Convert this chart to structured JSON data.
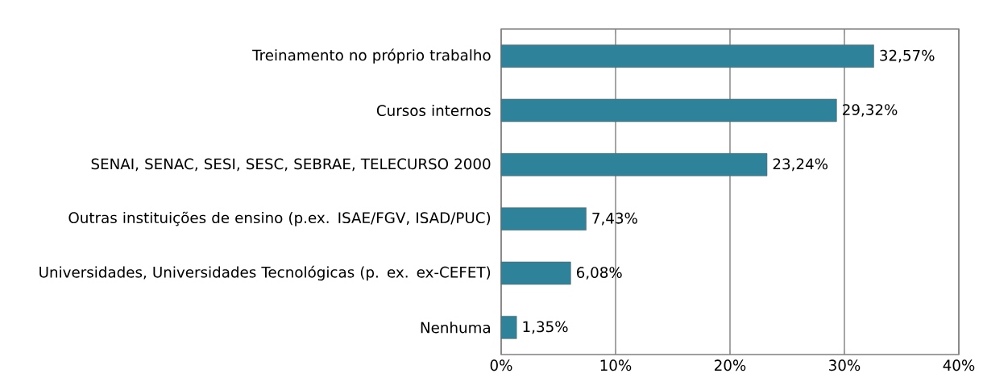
{
  "chart_data": {
    "type": "bar",
    "orientation": "horizontal",
    "categories": [
      "Treinamento no próprio trabalho",
      "Cursos internos",
      "SENAI, SENAC, SESI, SESC, SEBRAE, TELECURSO 2000",
      "Outras instituições de ensino (p.ex. ISAE/FGV, ISAD/PUC)",
      "Universidades, Universidades Tecnológicas (p. ex. ex-CEFET)",
      "Nenhuma"
    ],
    "values": [
      32.57,
      29.32,
      23.24,
      7.43,
      6.08,
      1.35
    ],
    "value_labels": [
      "32,57%",
      "29,32%",
      "23,24%",
      "7,43%",
      "6,08%",
      "1,35%"
    ],
    "color": "#2e8299",
    "xlim": [
      0,
      40
    ],
    "xticks": [
      {
        "value": 0,
        "label": "0%"
      },
      {
        "value": 10,
        "label": "10%"
      },
      {
        "value": 20,
        "label": "20%"
      },
      {
        "value": 30,
        "label": "30%"
      },
      {
        "value": 40,
        "label": "40%"
      }
    ],
    "grid": "x"
  }
}
